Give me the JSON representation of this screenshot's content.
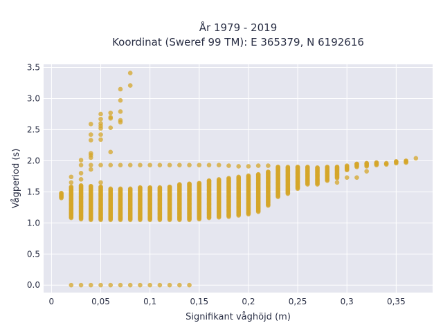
{
  "chart_data": {
    "type": "scatter",
    "title_line1": "År 1979 - 2019",
    "title_line2": "Koordinat (Sweref 99 TM): E 365379, N 6192616",
    "xlabel": "Signifikant våghöjd (m)",
    "ylabel": "Vågperiod (s)",
    "xlim": [
      -0.008,
      0.387
    ],
    "ylim": [
      -0.12,
      3.55
    ],
    "xticks": [
      0,
      0.05,
      0.1,
      0.15,
      0.2,
      0.25,
      0.3,
      0.35
    ],
    "xtick_labels": [
      "0",
      "0,05",
      "0,1",
      "0,15",
      "0,2",
      "0,25",
      "0,3",
      "0,35"
    ],
    "yticks": [
      0,
      0.5,
      1,
      1.5,
      2,
      2.5,
      3,
      3.5
    ],
    "ytick_labels": [
      "0.0",
      "0.5",
      "1.0",
      "1.5",
      "2.0",
      "2.5",
      "3.0",
      "3.5"
    ],
    "grid": true,
    "background": "#e5e6ef",
    "marker_color": "#d4a52a",
    "series": [
      {
        "clusters": [
          {
            "x": 0.01,
            "y_min": 1.4,
            "y_max": 1.48
          },
          {
            "x": 0.02,
            "y_min": 1.08,
            "y_max": 1.58
          },
          {
            "x": 0.03,
            "y_min": 1.06,
            "y_max": 1.6
          },
          {
            "x": 0.04,
            "y_min": 1.05,
            "y_max": 1.59
          },
          {
            "x": 0.05,
            "y_min": 1.05,
            "y_max": 1.58
          },
          {
            "x": 0.06,
            "y_min": 1.05,
            "y_max": 1.55
          },
          {
            "x": 0.07,
            "y_min": 1.05,
            "y_max": 1.55
          },
          {
            "x": 0.08,
            "y_min": 1.05,
            "y_max": 1.55
          },
          {
            "x": 0.09,
            "y_min": 1.05,
            "y_max": 1.57
          },
          {
            "x": 0.1,
            "y_min": 1.05,
            "y_max": 1.57
          },
          {
            "x": 0.11,
            "y_min": 1.05,
            "y_max": 1.57
          },
          {
            "x": 0.12,
            "y_min": 1.05,
            "y_max": 1.58
          },
          {
            "x": 0.13,
            "y_min": 1.05,
            "y_max": 1.62
          },
          {
            "x": 0.14,
            "y_min": 1.05,
            "y_max": 1.63
          },
          {
            "x": 0.15,
            "y_min": 1.06,
            "y_max": 1.64
          },
          {
            "x": 0.16,
            "y_min": 1.08,
            "y_max": 1.68
          },
          {
            "x": 0.17,
            "y_min": 1.09,
            "y_max": 1.7
          },
          {
            "x": 0.18,
            "y_min": 1.1,
            "y_max": 1.72
          },
          {
            "x": 0.19,
            "y_min": 1.12,
            "y_max": 1.74
          },
          {
            "x": 0.2,
            "y_min": 1.14,
            "y_max": 1.76
          },
          {
            "x": 0.21,
            "y_min": 1.18,
            "y_max": 1.78
          },
          {
            "x": 0.22,
            "y_min": 1.28,
            "y_max": 1.82
          },
          {
            "x": 0.23,
            "y_min": 1.42,
            "y_max": 1.9
          },
          {
            "x": 0.24,
            "y_min": 1.47,
            "y_max": 1.9
          },
          {
            "x": 0.25,
            "y_min": 1.55,
            "y_max": 1.9
          },
          {
            "x": 0.26,
            "y_min": 1.62,
            "y_max": 1.9
          },
          {
            "x": 0.27,
            "y_min": 1.62,
            "y_max": 1.89
          },
          {
            "x": 0.28,
            "y_min": 1.68,
            "y_max": 1.9
          },
          {
            "x": 0.29,
            "y_min": 1.72,
            "y_max": 1.9
          },
          {
            "x": 0.3,
            "y_min": 1.85,
            "y_max": 1.92
          },
          {
            "x": 0.31,
            "y_min": 1.9,
            "y_max": 1.95
          },
          {
            "x": 0.32,
            "y_min": 1.91,
            "y_max": 1.96
          },
          {
            "x": 0.33,
            "y_min": 1.93,
            "y_max": 1.97
          },
          {
            "x": 0.34,
            "y_min": 1.94,
            "y_max": 1.96
          },
          {
            "x": 0.35,
            "y_min": 1.96,
            "y_max": 1.99
          },
          {
            "x": 0.36,
            "y_min": 1.97,
            "y_max": 2.0
          }
        ],
        "points": [
          [
            0.02,
            0
          ],
          [
            0.03,
            0
          ],
          [
            0.04,
            0
          ],
          [
            0.05,
            0
          ],
          [
            0.06,
            0
          ],
          [
            0.07,
            0
          ],
          [
            0.08,
            0
          ],
          [
            0.09,
            0
          ],
          [
            0.1,
            0
          ],
          [
            0.11,
            0
          ],
          [
            0.12,
            0
          ],
          [
            0.13,
            0
          ],
          [
            0.14,
            0
          ],
          [
            0.03,
            1.93
          ],
          [
            0.04,
            1.93
          ],
          [
            0.05,
            1.93
          ],
          [
            0.06,
            1.93
          ],
          [
            0.07,
            1.93
          ],
          [
            0.08,
            1.93
          ],
          [
            0.09,
            1.93
          ],
          [
            0.1,
            1.93
          ],
          [
            0.11,
            1.93
          ],
          [
            0.12,
            1.93
          ],
          [
            0.13,
            1.93
          ],
          [
            0.14,
            1.93
          ],
          [
            0.15,
            1.93
          ],
          [
            0.16,
            1.93
          ],
          [
            0.17,
            1.93
          ],
          [
            0.18,
            1.92
          ],
          [
            0.19,
            1.91
          ],
          [
            0.2,
            1.91
          ],
          [
            0.21,
            1.92
          ],
          [
            0.22,
            1.92
          ],
          [
            0.02,
            1.65
          ],
          [
            0.02,
            1.74
          ],
          [
            0.03,
            1.7
          ],
          [
            0.03,
            1.8
          ],
          [
            0.03,
            2.01
          ],
          [
            0.04,
            1.86
          ],
          [
            0.04,
            2.05
          ],
          [
            0.04,
            2.09
          ],
          [
            0.04,
            2.12
          ],
          [
            0.04,
            2.33
          ],
          [
            0.04,
            2.42
          ],
          [
            0.04,
            2.59
          ],
          [
            0.05,
            1.65
          ],
          [
            0.05,
            2.34
          ],
          [
            0.05,
            2.42
          ],
          [
            0.05,
            2.52
          ],
          [
            0.05,
            2.56
          ],
          [
            0.05,
            2.6
          ],
          [
            0.05,
            2.67
          ],
          [
            0.05,
            2.75
          ],
          [
            0.06,
            2.14
          ],
          [
            0.06,
            2.53
          ],
          [
            0.06,
            2.68
          ],
          [
            0.06,
            2.7
          ],
          [
            0.06,
            2.77
          ],
          [
            0.07,
            2.62
          ],
          [
            0.07,
            2.65
          ],
          [
            0.07,
            2.79
          ],
          [
            0.07,
            2.97
          ],
          [
            0.07,
            3.15
          ],
          [
            0.08,
            3.21
          ],
          [
            0.08,
            3.41
          ],
          [
            0.37,
            2.04
          ],
          [
            0.29,
            1.65
          ],
          [
            0.3,
            1.73
          ],
          [
            0.31,
            1.73
          ],
          [
            0.32,
            1.83
          ]
        ]
      }
    ]
  }
}
